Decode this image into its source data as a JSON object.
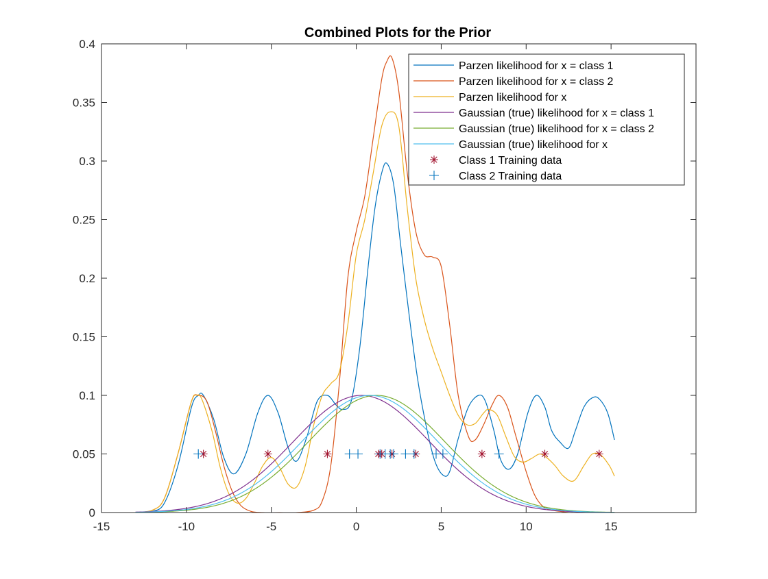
{
  "chart_data": {
    "type": "line",
    "title": "Combined Plots for the Prior",
    "xlabel": "",
    "ylabel": "",
    "xlim": [
      -15,
      20
    ],
    "ylim": [
      0,
      0.4
    ],
    "xticks": [
      -15,
      -10,
      -5,
      0,
      5,
      10,
      15
    ],
    "xtick_labels": [
      "-15",
      "-10",
      "-5",
      "0",
      "5",
      "10",
      "15"
    ],
    "yticks": [
      0,
      0.05,
      0.1,
      0.15,
      0.2,
      0.25,
      0.3,
      0.35,
      0.4
    ],
    "ytick_labels": [
      "0",
      "0.05",
      "0.1",
      "0.15",
      "0.2",
      "0.25",
      "0.3",
      "0.35",
      "0.4"
    ],
    "grid": false,
    "legend_position": "top-right",
    "series": [
      {
        "name": "Parzen likelihood for x = class 1",
        "color": "#0072BD",
        "kind": "line",
        "x": [
          -13,
          -12,
          -11.3,
          -10.5,
          -9.7,
          -9.3,
          -9,
          -8.4,
          -7.8,
          -7.2,
          -6.5,
          -5.8,
          -5.2,
          -4.6,
          -4,
          -3.5,
          -2.9,
          -2.3,
          -1.7,
          -1.2,
          -0.8,
          -0.3,
          0.2,
          0.7,
          1.1,
          1.5,
          1.8,
          2.2,
          2.6,
          3.1,
          3.6,
          4.1,
          4.6,
          5.1,
          5.5,
          6,
          6.6,
          7.2,
          7.6,
          8.1,
          8.5,
          9,
          9.5,
          10.1,
          10.6,
          11.1,
          11.5,
          12,
          12.5,
          12.9,
          13.4,
          13.9,
          14.3,
          14.8,
          15.2
        ],
        "y": [
          0,
          0.001,
          0.008,
          0.04,
          0.09,
          0.1,
          0.1,
          0.08,
          0.047,
          0.033,
          0.05,
          0.085,
          0.1,
          0.085,
          0.055,
          0.044,
          0.065,
          0.095,
          0.1,
          0.092,
          0.088,
          0.095,
          0.14,
          0.21,
          0.26,
          0.29,
          0.298,
          0.28,
          0.23,
          0.17,
          0.115,
          0.075,
          0.045,
          0.032,
          0.035,
          0.063,
          0.09,
          0.1,
          0.095,
          0.07,
          0.045,
          0.037,
          0.05,
          0.085,
          0.1,
          0.09,
          0.07,
          0.06,
          0.055,
          0.07,
          0.09,
          0.098,
          0.097,
          0.085,
          0.062
        ]
      },
      {
        "name": "Parzen likelihood for x = class 2",
        "color": "#D95319",
        "kind": "line",
        "x": [
          -13,
          -12,
          -11.3,
          -10.5,
          -9.7,
          -9.3,
          -8.8,
          -8.3,
          -7.8,
          -7.3,
          -6.8,
          -6.2,
          -5.5,
          -4.5,
          -3.5,
          -2.5,
          -2,
          -1.5,
          -1,
          -0.5,
          0,
          0.5,
          1,
          1.5,
          1.8,
          2.1,
          2.5,
          3,
          3.5,
          4,
          4.5,
          5,
          5.5,
          6,
          6.6,
          7,
          7.5,
          8,
          8.4,
          8.9,
          9.4,
          10,
          10.5,
          11,
          11.5,
          12,
          12.5,
          13
        ],
        "y": [
          0,
          0.002,
          0.012,
          0.05,
          0.095,
          0.1,
          0.095,
          0.07,
          0.04,
          0.018,
          0.006,
          0.001,
          0,
          0,
          0,
          0.002,
          0.01,
          0.04,
          0.11,
          0.2,
          0.24,
          0.27,
          0.32,
          0.37,
          0.385,
          0.388,
          0.36,
          0.29,
          0.24,
          0.22,
          0.218,
          0.21,
          0.16,
          0.1,
          0.065,
          0.062,
          0.075,
          0.092,
          0.1,
          0.09,
          0.065,
          0.035,
          0.015,
          0.005,
          0.002,
          0.001,
          0,
          0
        ]
      },
      {
        "name": "Parzen likelihood for x",
        "color": "#EDB120",
        "kind": "line",
        "x": [
          -13,
          -12,
          -11.3,
          -10.5,
          -9.7,
          -9.4,
          -9.1,
          -8.5,
          -8,
          -7.5,
          -7,
          -6.5,
          -6,
          -5.5,
          -5,
          -4.5,
          -4,
          -3.5,
          -3,
          -2.5,
          -2,
          -1.5,
          -1,
          -0.5,
          0,
          0.5,
          1,
          1.5,
          2,
          2.5,
          3,
          3.5,
          4,
          4.5,
          5,
          5.5,
          6,
          6.5,
          7,
          7.5,
          7.8,
          8.3,
          8.8,
          9.3,
          9.8,
          10.3,
          10.8,
          11.2,
          11.7,
          12.2,
          12.8,
          13.4,
          13.9,
          14.4,
          14.9,
          15.2
        ],
        "y": [
          0,
          0.002,
          0.012,
          0.05,
          0.095,
          0.1,
          0.097,
          0.07,
          0.038,
          0.016,
          0.008,
          0.012,
          0.025,
          0.04,
          0.047,
          0.038,
          0.024,
          0.022,
          0.04,
          0.075,
          0.1,
          0.11,
          0.12,
          0.16,
          0.22,
          0.25,
          0.29,
          0.33,
          0.342,
          0.33,
          0.26,
          0.2,
          0.165,
          0.14,
          0.12,
          0.1,
          0.083,
          0.075,
          0.076,
          0.085,
          0.088,
          0.083,
          0.065,
          0.048,
          0.043,
          0.046,
          0.05,
          0.047,
          0.04,
          0.031,
          0.027,
          0.04,
          0.05,
          0.049,
          0.04,
          0.031
        ]
      },
      {
        "name": "Gaussian (true) likelihood for x = class 1",
        "color": "#7E2F8E",
        "kind": "gaussian",
        "mu": 0.3,
        "sigma": 4,
        "peak": 0.1,
        "xrange": [
          -13,
          15.2
        ]
      },
      {
        "name": "Gaussian (true) likelihood for x = class 2",
        "color": "#77AC30",
        "kind": "gaussian",
        "mu": 1.2,
        "sigma": 4,
        "peak": 0.1,
        "xrange": [
          -13,
          15.2
        ]
      },
      {
        "name": "Gaussian (true) likelihood for x",
        "color": "#4DBEEE",
        "kind": "gaussian",
        "mu": 0.8,
        "sigma": 4,
        "peak": 0.1,
        "xrange": [
          -13,
          15.2
        ]
      },
      {
        "name": "Class 1 Training data",
        "color": "#A2142F",
        "kind": "star",
        "x": [
          -9.0,
          -5.2,
          -1.7,
          1.3,
          1.5,
          2.1,
          3.5,
          7.4,
          11.1,
          14.3
        ],
        "y": [
          0.05,
          0.05,
          0.05,
          0.05,
          0.05,
          0.05,
          0.05,
          0.05,
          0.05,
          0.05
        ]
      },
      {
        "name": "Class 2 Training data",
        "color": "#0072BD",
        "kind": "plus",
        "x": [
          -9.3,
          -0.4,
          0.1,
          1.4,
          1.7,
          2.0,
          2.2,
          2.9,
          3.4,
          4.7,
          5.1,
          8.4
        ],
        "y": [
          0.05,
          0.05,
          0.05,
          0.05,
          0.05,
          0.05,
          0.05,
          0.05,
          0.05,
          0.05,
          0.05,
          0.05
        ]
      }
    ]
  }
}
